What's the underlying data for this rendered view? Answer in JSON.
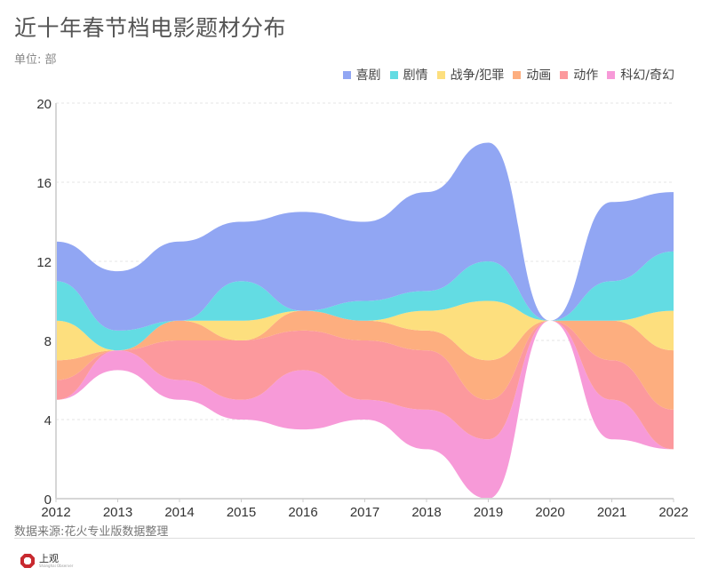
{
  "title": "近十年春节档电影题材分布",
  "subtitle": "单位: 部",
  "source": "数据来源:花火专业版数据整理",
  "logo": {
    "name": "上观",
    "sub": "Shanghai Observer",
    "color": "#c8292f"
  },
  "chart_data": {
    "type": "area",
    "subtype": "streamgraph",
    "title": "近十年春节档电影题材分布",
    "ylabel": "单位: 部",
    "xlabel": "",
    "x": [
      "2012",
      "2013",
      "2014",
      "2015",
      "2016",
      "2017",
      "2018",
      "2019",
      "2020",
      "2021",
      "2022"
    ],
    "yticks": [
      "0",
      "4",
      "8",
      "12",
      "16",
      "20"
    ],
    "ylim": [
      0,
      20
    ],
    "grid": true,
    "legend_position": "top-right",
    "baseline": [
      5,
      6.5,
      5,
      4,
      3.5,
      4,
      2.5,
      0,
      9,
      3,
      2.5
    ],
    "series": [
      {
        "name": "科幻/奇幻",
        "color": "#f79ad8",
        "values": [
          0,
          1,
          1,
          1,
          3,
          1,
          2,
          3,
          0,
          2,
          0
        ]
      },
      {
        "name": "动作",
        "color": "#fc999d",
        "values": [
          1,
          0,
          2,
          3,
          2,
          3,
          3,
          2,
          0,
          2,
          2
        ]
      },
      {
        "name": "动画",
        "color": "#fdae7f",
        "values": [
          1,
          0,
          1,
          0,
          1,
          1,
          1,
          2,
          0,
          2,
          3
        ]
      },
      {
        "name": "战争/犯罪",
        "color": "#fddf7e",
        "values": [
          2,
          0,
          0,
          1,
          0,
          0,
          1,
          3,
          0,
          0,
          2
        ]
      },
      {
        "name": "剧情",
        "color": "#63dce3",
        "values": [
          2,
          1,
          0,
          2,
          0,
          1,
          1,
          2,
          0,
          2,
          3
        ]
      },
      {
        "name": "喜剧",
        "color": "#91a6f3",
        "values": [
          2,
          3,
          4,
          3,
          5,
          4,
          5,
          6,
          0,
          4,
          3
        ]
      }
    ],
    "legend_order": [
      "喜剧",
      "剧情",
      "战争/犯罪",
      "动画",
      "动作",
      "科幻/奇幻"
    ]
  }
}
